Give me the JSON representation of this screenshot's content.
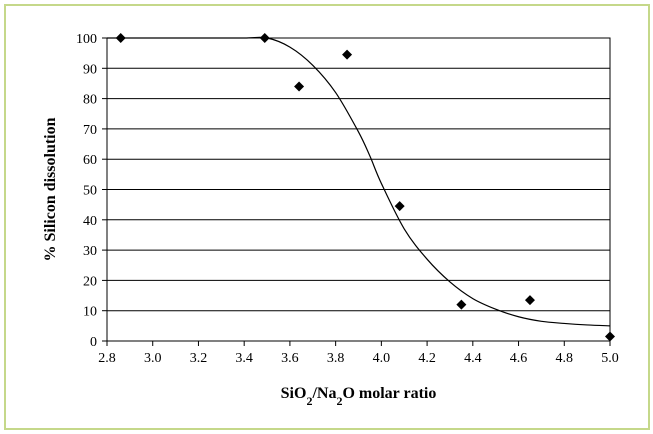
{
  "chart_data": {
    "type": "scatter",
    "title": "",
    "xlabel": {
      "parts": [
        {
          "text": "SiO",
          "sub": false
        },
        {
          "text": "2",
          "sub": true
        },
        {
          "text": "/Na",
          "sub": false
        },
        {
          "text": "2",
          "sub": true
        },
        {
          "text": "O molar ratio",
          "sub": false
        }
      ]
    },
    "ylabel": "% Silicon dissolution",
    "xlim": [
      2.8,
      5.0
    ],
    "ylim": [
      0,
      100
    ],
    "xticks": [
      "2.8",
      "3.0",
      "3.2",
      "3.4",
      "3.6",
      "3.8",
      "4.0",
      "4.2",
      "4.4",
      "4.6",
      "4.8",
      "5.0"
    ],
    "yticks": [
      "0",
      "10",
      "20",
      "30",
      "40",
      "50",
      "60",
      "70",
      "80",
      "90",
      "100"
    ],
    "grid": "horizontal",
    "series": [
      {
        "marker": "diamond",
        "color": "#000000",
        "x": [
          2.86,
          3.49,
          3.64,
          3.85,
          4.08,
          4.35,
          4.65,
          5.0
        ],
        "y": [
          100,
          100,
          84,
          94.5,
          44.5,
          12,
          13.5,
          1.5
        ]
      }
    ],
    "fit_curve": {
      "color": "#000000",
      "x": [
        2.8,
        3.0,
        3.2,
        3.4,
        3.5,
        3.6,
        3.7,
        3.8,
        3.9,
        3.95,
        4.0,
        4.1,
        4.2,
        4.3,
        4.4,
        4.5,
        4.6,
        4.7,
        4.8,
        4.9,
        5.0
      ],
      "y": [
        100,
        100,
        100,
        100,
        100,
        97,
        91,
        82,
        69,
        61,
        52,
        37,
        27,
        19.5,
        14,
        10.5,
        8,
        6.5,
        5.8,
        5.3,
        5
      ]
    }
  }
}
